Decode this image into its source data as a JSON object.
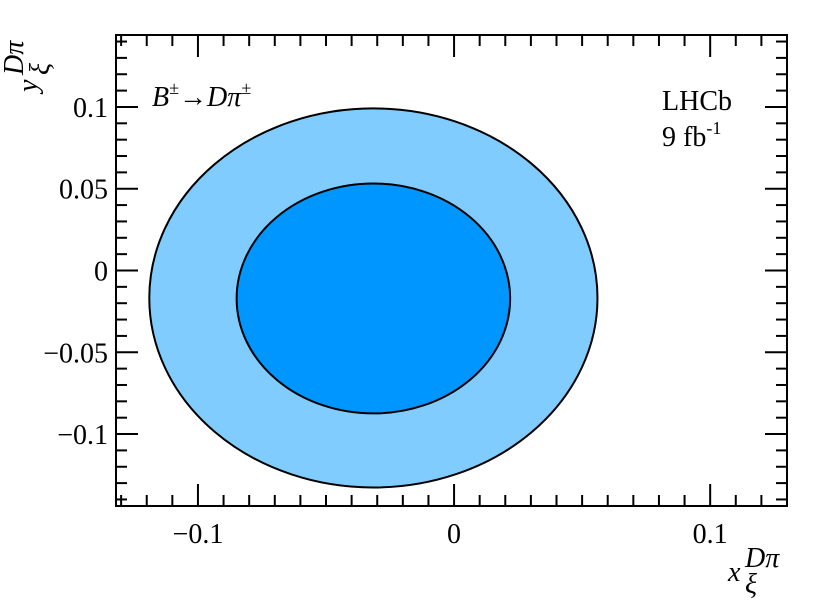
{
  "chart_data": {
    "type": "contour",
    "x_label": {
      "base": "x",
      "sup": "Dπ",
      "sub": "ξ"
    },
    "y_label": {
      "base": "y",
      "sup": "Dπ",
      "sub": "ξ"
    },
    "annotation": [
      "B",
      "±",
      "→Dπ",
      "±"
    ],
    "experiment": "LHCb",
    "luminosity": [
      "9 fb",
      "-1"
    ],
    "xlim": [
      -0.132,
      0.13
    ],
    "ylim": [
      -0.144,
      0.144
    ],
    "xticks": [
      {
        "value": -0.1,
        "label": "−0.1"
      },
      0,
      0.1
    ],
    "yticks": [
      {
        "value": -0.1,
        "label": "−0.1"
      },
      {
        "value": -0.05,
        "label": "−0.05"
      },
      0,
      0.05,
      0.1
    ],
    "contours": [
      {
        "center_x": -0.0315,
        "center_y": -0.0168,
        "radius_x": 0.0875,
        "radius_y": 0.1159,
        "color": "#80ccff"
      },
      {
        "center_x": -0.0315,
        "center_y": -0.0171,
        "radius_x": 0.0534,
        "radius_y": 0.0703,
        "color": "#0096ff"
      }
    ]
  }
}
